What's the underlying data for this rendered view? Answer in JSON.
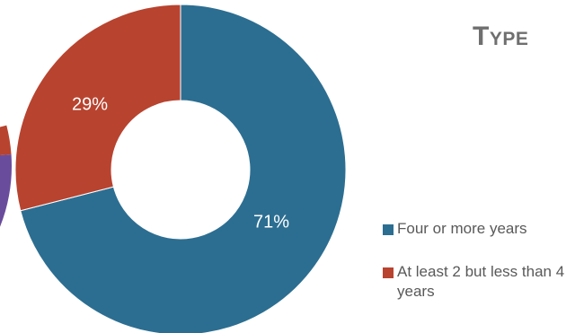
{
  "chart_data": {
    "type": "pie",
    "title": "Type",
    "categories": [
      "Four or more years",
      "At least 2 but less than 4 years"
    ],
    "values": [
      71,
      29
    ],
    "data_labels": [
      "71%",
      "29%"
    ],
    "colors": [
      "#2c6e91",
      "#b8432f"
    ],
    "partial_chart_colors": [
      "#6a4c9c",
      "#b8432f"
    ],
    "legend_placement": "right",
    "donut": true
  }
}
